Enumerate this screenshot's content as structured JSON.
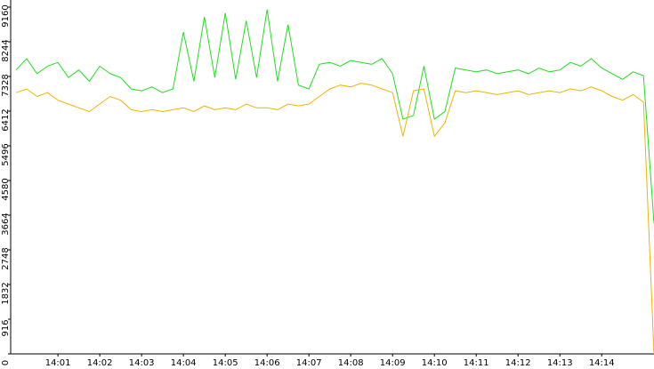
{
  "chart_data": {
    "type": "line",
    "x": [
      840,
      840.25,
      840.5,
      840.75,
      841,
      841.25,
      841.5,
      841.75,
      842,
      842.25,
      842.5,
      842.75,
      843,
      843.25,
      843.5,
      843.75,
      844,
      844.25,
      844.5,
      844.75,
      845,
      845.25,
      845.5,
      845.75,
      846,
      846.25,
      846.5,
      846.75,
      847,
      847.25,
      847.5,
      847.75,
      848,
      848.25,
      848.5,
      848.75,
      849,
      849.25,
      849.5,
      849.75,
      850,
      850.25,
      850.5,
      850.75,
      851,
      851.25,
      851.5,
      851.75,
      852,
      852.25,
      852.5,
      852.75,
      853,
      853.25,
      853.5,
      853.75,
      854,
      854.25,
      854.5,
      854.75,
      855,
      855.25
    ],
    "series": [
      {
        "color": "#22dd22",
        "values": [
          7500,
          7800,
          7400,
          7600,
          7700,
          7300,
          7500,
          7200,
          7600,
          7400,
          7300,
          7000,
          6950,
          7050,
          6900,
          7000,
          8500,
          7200,
          8900,
          7300,
          9000,
          7250,
          8800,
          7300,
          9100,
          7200,
          8700,
          7100,
          7000,
          7650,
          7700,
          7600,
          7750,
          7700,
          7650,
          7800,
          7400,
          6200,
          6300,
          7600,
          6200,
          6400,
          7550,
          7500,
          7450,
          7500,
          7400,
          7450,
          7500,
          7400,
          7550,
          7450,
          7500,
          7700,
          7600,
          7800,
          7550,
          7400,
          7250,
          7450,
          7350,
          3450
        ]
      },
      {
        "color": "#f0b400",
        "values": [
          6900,
          7000,
          6800,
          6900,
          6700,
          6600,
          6500,
          6400,
          6600,
          6800,
          6700,
          6450,
          6400,
          6450,
          6400,
          6450,
          6500,
          6400,
          6550,
          6450,
          6500,
          6450,
          6600,
          6500,
          6500,
          6450,
          6600,
          6550,
          6600,
          6800,
          7000,
          7100,
          7050,
          7150,
          7100,
          7000,
          6900,
          5750,
          6950,
          7000,
          5750,
          6100,
          6950,
          6900,
          6950,
          6900,
          6850,
          6900,
          6950,
          6850,
          6900,
          6950,
          6900,
          7000,
          6950,
          7050,
          6950,
          6800,
          6700,
          6850,
          6650,
          0
        ]
      }
    ],
    "xlim": [
      839.87,
      855.25
    ],
    "xticks": [
      {
        "value": 841,
        "label": "14:01"
      },
      {
        "value": 842,
        "label": "14:02"
      },
      {
        "value": 843,
        "label": "14:03"
      },
      {
        "value": 844,
        "label": "14:04"
      },
      {
        "value": 845,
        "label": "14:05"
      },
      {
        "value": 846,
        "label": "14:06"
      },
      {
        "value": 847,
        "label": "14:07"
      },
      {
        "value": 848,
        "label": "14:08"
      },
      {
        "value": 849,
        "label": "14:09"
      },
      {
        "value": 850,
        "label": "14:10"
      },
      {
        "value": 851,
        "label": "14:11"
      },
      {
        "value": 852,
        "label": "14:12"
      },
      {
        "value": 853,
        "label": "14:13"
      },
      {
        "value": 854,
        "label": "14:14"
      }
    ],
    "ylim": [
      0,
      9160
    ],
    "yticks": [
      0,
      916,
      1832,
      2748,
      3664,
      4580,
      5496,
      6412,
      7328,
      8244,
      9160
    ]
  }
}
